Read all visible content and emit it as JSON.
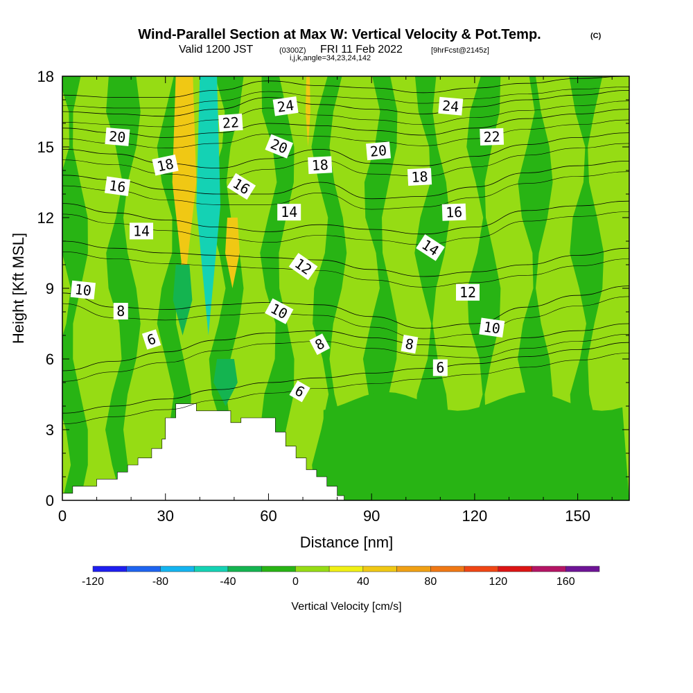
{
  "chart_data": {
    "type": "heatmap",
    "title": "Wind-Parallel Section at Max W: Vertical Velocity & Pot.Temp.",
    "title_mark": "(C)",
    "subtitle": {
      "valid": "Valid 1200 JST",
      "utc": "(0300Z)",
      "date": "FRI 11 Feb 2022",
      "forecast": "[9hrFcst@2145z]"
    },
    "grid_info": "i,j,k,angle=34,23,24,142",
    "xlabel": "Distance [nm]",
    "ylabel": "Height [Kft MSL]",
    "xlim": [
      0,
      165
    ],
    "ylim": [
      0,
      18
    ],
    "xticks": [
      0,
      30,
      60,
      90,
      120,
      150
    ],
    "yticks": [
      0,
      3,
      6,
      9,
      12,
      15,
      18
    ],
    "colorbar": {
      "title": "Vertical Velocity [cm/s]",
      "range": [
        -120,
        180
      ],
      "step": 20,
      "labels": [
        -120,
        -80,
        -40,
        0,
        40,
        80,
        120,
        160
      ],
      "colors": [
        "#1e1ef0",
        "#1e64f0",
        "#14b4f0",
        "#14d2b4",
        "#14b450",
        "#28b414",
        "#96dc14",
        "#f0f014",
        "#f0c814",
        "#f0a014",
        "#f07814",
        "#f04614",
        "#dc1414",
        "#b41464",
        "#6e1496"
      ]
    },
    "terrain_kft": [
      [
        0,
        0.3
      ],
      [
        3,
        0.6
      ],
      [
        10,
        0.9
      ],
      [
        16,
        1.2
      ],
      [
        19,
        1.5
      ],
      [
        22,
        1.8
      ],
      [
        26,
        2.2
      ],
      [
        29,
        2.6
      ],
      [
        30,
        3.5
      ],
      [
        33,
        4.1
      ],
      [
        39,
        3.8
      ],
      [
        49,
        3.3
      ],
      [
        52,
        3.5
      ],
      [
        62,
        2.9
      ],
      [
        65,
        2.3
      ],
      [
        68,
        1.8
      ],
      [
        71,
        1.3
      ],
      [
        74,
        1.0
      ],
      [
        77,
        0.6
      ],
      [
        80,
        0.2
      ],
      [
        82,
        0
      ]
    ],
    "velocity_bands": [
      {
        "x": [
          33,
          38
        ],
        "y": [
          9,
          18
        ],
        "w": 50
      },
      {
        "x": [
          40,
          45
        ],
        "y": [
          7,
          18
        ],
        "w": -50
      },
      {
        "x": [
          48,
          51
        ],
        "y": [
          9,
          12
        ],
        "w": 50
      },
      {
        "x": [
          71,
          72
        ],
        "y": [
          15,
          18
        ],
        "w": 40
      },
      {
        "x": [
          33,
          37
        ],
        "y": [
          7,
          10
        ],
        "w": -30
      },
      {
        "x": [
          45,
          50
        ],
        "y": [
          4,
          6
        ],
        "w": -25
      }
    ],
    "theta_contours": [
      {
        "label": "6",
        "z": [
          3.7,
          4.0,
          4.3,
          4.7,
          5.0,
          5.2,
          5.4,
          5.6,
          5.8,
          6.1,
          6.4,
          6.7
        ]
      },
      {
        "label": "8",
        "z": [
          5.5,
          5.9,
          6.3,
          6.8,
          7.1,
          7.2,
          6.9,
          6.6,
          6.5,
          6.9,
          7.2,
          7.5
        ]
      },
      {
        "label": "10",
        "z": [
          8.8,
          8.2,
          8.1,
          8.3,
          8.4,
          8.3,
          7.8,
          7.3,
          7.5,
          8.2,
          8.7,
          9.1
        ]
      },
      {
        "label": "12",
        "z": [
          11.0,
          10.7,
          10.5,
          10.4,
          10.3,
          10.2,
          9.8,
          9.5,
          9.7,
          10.0,
          10.4,
          10.7
        ]
      },
      {
        "label": "14",
        "z": [
          12.6,
          12.2,
          11.9,
          11.6,
          11.4,
          11.7,
          11.5,
          11.3,
          11.6,
          12.3,
          12.5,
          12.7
        ]
      },
      {
        "label": "16",
        "z": [
          13.8,
          13.6,
          13.2,
          13.0,
          13.0,
          13.5,
          12.8,
          12.9,
          13.3,
          13.9,
          14.2,
          14.4
        ]
      },
      {
        "label": "18",
        "z": [
          14.9,
          14.7,
          14.3,
          14.1,
          14.5,
          14.9,
          14.3,
          14.2,
          14.6,
          15.1,
          15.4,
          15.6
        ]
      },
      {
        "label": "20",
        "z": [
          15.8,
          15.6,
          15.4,
          15.6,
          16.0,
          15.9,
          15.7,
          15.5,
          15.8,
          16.2,
          16.4,
          16.6
        ]
      },
      {
        "label": "22",
        "z": [
          16.5,
          16.4,
          16.3,
          16.6,
          17.1,
          16.8,
          16.6,
          16.4,
          16.7,
          17.0,
          17.2,
          17.4
        ]
      },
      {
        "label": "24",
        "z": [
          17.2,
          17.1,
          17.1,
          17.4,
          17.8,
          17.6,
          17.5,
          17.3,
          17.5,
          17.7,
          17.9,
          18.0
        ]
      }
    ],
    "theta_contour_x": [
      0,
      15,
      30,
      45,
      60,
      75,
      90,
      105,
      120,
      135,
      150,
      165
    ],
    "contour_labels": [
      {
        "text": "24",
        "x": 65,
        "y": 16.7,
        "angle": -8
      },
      {
        "text": "24",
        "x": 113,
        "y": 16.7,
        "angle": 5
      },
      {
        "text": "22",
        "x": 49,
        "y": 16.0,
        "angle": -4
      },
      {
        "text": "22",
        "x": 125,
        "y": 15.4,
        "angle": -2
      },
      {
        "text": "20",
        "x": 16,
        "y": 15.4,
        "angle": 5
      },
      {
        "text": "20",
        "x": 63,
        "y": 15.0,
        "angle": 22
      },
      {
        "text": "20",
        "x": 92,
        "y": 14.8,
        "angle": -5
      },
      {
        "text": "18",
        "x": 30,
        "y": 14.2,
        "angle": -12
      },
      {
        "text": "18",
        "x": 75,
        "y": 14.2,
        "angle": -3
      },
      {
        "text": "18",
        "x": 104,
        "y": 13.7,
        "angle": -3
      },
      {
        "text": "16",
        "x": 16,
        "y": 13.3,
        "angle": 8
      },
      {
        "text": "16",
        "x": 52,
        "y": 13.3,
        "angle": 32
      },
      {
        "text": "16",
        "x": 114,
        "y": 12.2,
        "angle": -2
      },
      {
        "text": "14",
        "x": 23,
        "y": 11.4,
        "angle": 0
      },
      {
        "text": "14",
        "x": 66,
        "y": 12.2,
        "angle": 0
      },
      {
        "text": "14",
        "x": 107,
        "y": 10.7,
        "angle": 33
      },
      {
        "text": "12",
        "x": 70,
        "y": 9.9,
        "angle": 35
      },
      {
        "text": "12",
        "x": 118,
        "y": 8.8,
        "angle": 0
      },
      {
        "text": "10",
        "x": 6,
        "y": 8.9,
        "angle": 6
      },
      {
        "text": "10",
        "x": 63,
        "y": 8.0,
        "angle": 28
      },
      {
        "text": "10",
        "x": 125,
        "y": 7.3,
        "angle": 8
      },
      {
        "text": "8",
        "x": 17,
        "y": 8.0,
        "angle": 0
      },
      {
        "text": "8",
        "x": 75,
        "y": 6.6,
        "angle": -28
      },
      {
        "text": "8",
        "x": 101,
        "y": 6.6,
        "angle": 10
      },
      {
        "text": "6",
        "x": 26,
        "y": 6.8,
        "angle": -18
      },
      {
        "text": "6",
        "x": 69,
        "y": 4.6,
        "angle": 30
      },
      {
        "text": "6",
        "x": 110,
        "y": 5.6,
        "angle": 0
      }
    ]
  }
}
